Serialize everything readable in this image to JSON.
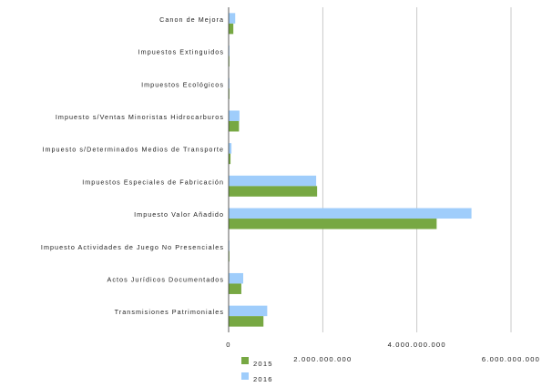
{
  "chart_data": {
    "type": "bar",
    "orientation": "horizontal",
    "categories": [
      "Canon de Mejora",
      "Impuestos Extinguidos",
      "Impuestos Ecológicos",
      "Impuesto s/Ventas Minoristas Hidrocarburos",
      "Impuesto s/Determinados Medios de Transporte",
      "Impuestos Especiales de Fabricación",
      "Impuesto Valor Añadido",
      "Impuesto Actividades de Juego No Presenciales",
      "Actos Jurídicos Documentados",
      "Transmisiones Patrimoniales"
    ],
    "series": [
      {
        "name": "2015",
        "color": "#77a843",
        "values": [
          100000000,
          10000000,
          15000000,
          220000000,
          40000000,
          1880000000,
          4420000000,
          15000000,
          270000000,
          740000000
        ]
      },
      {
        "name": "2016",
        "color": "#9fcdfb",
        "values": [
          140000000,
          10000000,
          15000000,
          230000000,
          60000000,
          1860000000,
          5160000000,
          10000000,
          310000000,
          820000000
        ]
      }
    ],
    "xticks": [
      0,
      2000000000,
      4000000000,
      6000000000
    ],
    "xtick_labels": [
      "0",
      "2.000.000.000",
      "4.000.000.000",
      "6.000.000.000"
    ],
    "xlim": [
      0,
      6000000000
    ],
    "grid": "vertical",
    "legend_position": "bottom-left"
  }
}
